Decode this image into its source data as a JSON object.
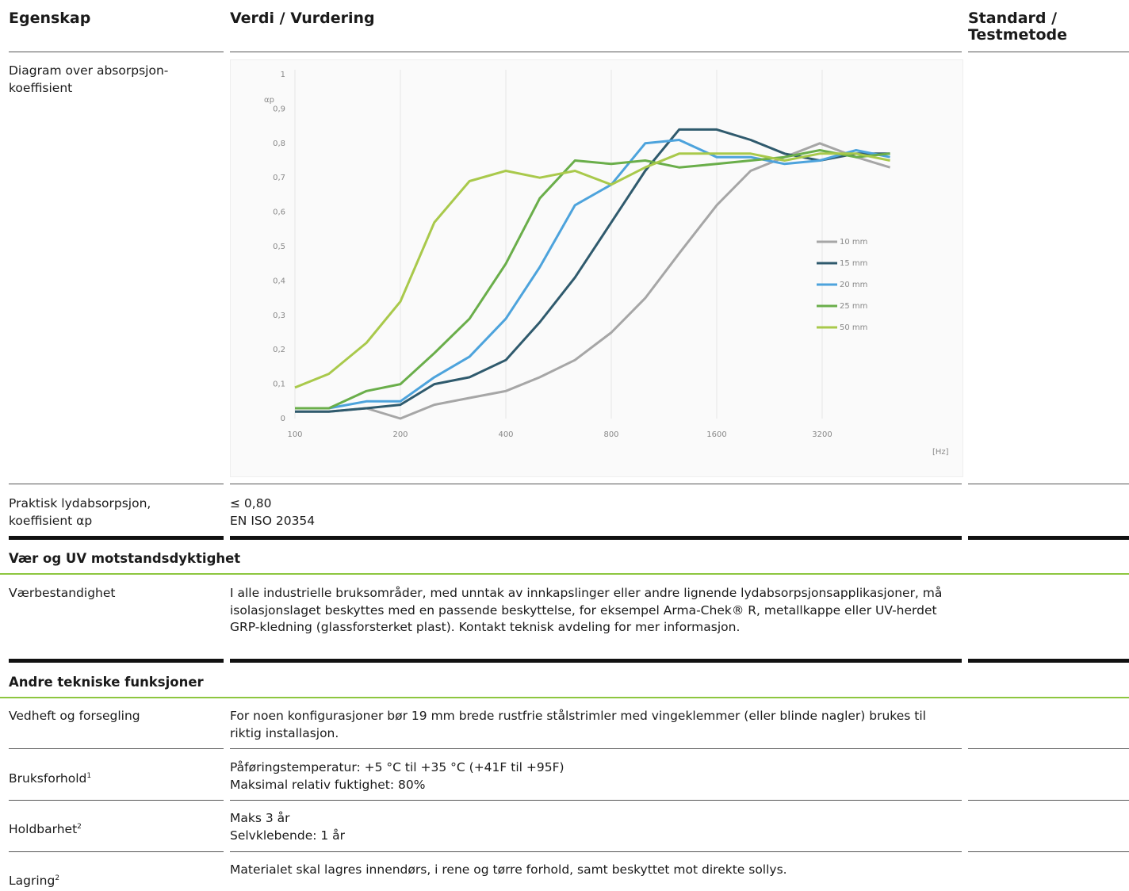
{
  "header": {
    "col1": "Egenskap",
    "col2": "Verdi / Vurdering",
    "col3": "Standard / Testmetode"
  },
  "chart_row": {
    "label": "Diagram over absorpsjon-koeffisient"
  },
  "chart_data": {
    "type": "line",
    "y_label": "αp",
    "x_label": "[Hz]",
    "x": [
      100,
      125,
      160,
      200,
      250,
      315,
      400,
      500,
      630,
      800,
      1000,
      1250,
      1600,
      2000,
      2500,
      3150,
      4000,
      5000
    ],
    "xlim": [
      100,
      6400
    ],
    "xticks": [
      100,
      200,
      400,
      800,
      1600,
      3200
    ],
    "log_x": true,
    "ylim": [
      0,
      1
    ],
    "yticks": [
      0,
      {
        "value": 0.1,
        "label": "0,1"
      },
      {
        "value": 0.2,
        "label": "0,2"
      },
      {
        "value": 0.3,
        "label": "0,3"
      },
      {
        "value": 0.4,
        "label": "0,4"
      },
      {
        "value": 0.5,
        "label": "0,5"
      },
      {
        "value": 0.6,
        "label": "0,6"
      },
      {
        "value": 0.7,
        "label": "0,7"
      },
      {
        "value": 0.8,
        "label": "0,8"
      },
      {
        "value": 0.9,
        "label": "0,9"
      },
      1
    ],
    "grid": "x",
    "legend": "right",
    "series": [
      {
        "name": "10 mm",
        "color": "#a6a6a6",
        "values": [
          0.02,
          0.02,
          0.03,
          0.0,
          0.04,
          0.06,
          0.08,
          0.12,
          0.17,
          0.25,
          0.35,
          0.48,
          0.62,
          0.72,
          0.76,
          0.8,
          0.76,
          0.73
        ]
      },
      {
        "name": "15 mm",
        "color": "#2f5a6d",
        "values": [
          0.02,
          0.02,
          0.03,
          0.04,
          0.1,
          0.12,
          0.17,
          0.28,
          0.41,
          0.57,
          0.72,
          0.84,
          0.84,
          0.81,
          0.77,
          0.75,
          0.77,
          0.77
        ]
      },
      {
        "name": "20 mm",
        "color": "#4da3dc",
        "values": [
          0.03,
          0.03,
          0.05,
          0.05,
          0.12,
          0.18,
          0.29,
          0.44,
          0.62,
          0.68,
          0.8,
          0.81,
          0.76,
          0.76,
          0.74,
          0.75,
          0.78,
          0.76
        ]
      },
      {
        "name": "25 mm",
        "color": "#6aae4a",
        "values": [
          0.03,
          0.03,
          0.08,
          0.1,
          0.19,
          0.29,
          0.45,
          0.64,
          0.75,
          0.74,
          0.75,
          0.73,
          0.74,
          0.75,
          0.76,
          0.78,
          0.76,
          0.77
        ]
      },
      {
        "name": "50 mm",
        "color": "#a9c94b",
        "values": [
          0.09,
          0.13,
          0.22,
          0.34,
          0.57,
          0.69,
          0.72,
          0.7,
          0.72,
          0.68,
          0.73,
          0.77,
          0.77,
          0.77,
          0.75,
          0.77,
          0.77,
          0.75
        ]
      }
    ]
  },
  "rows": [
    {
      "label": "Praktisk lydabsorpsjon, koeffisient αp",
      "lines": [
        "≤ 0,80",
        "EN ISO 20354"
      ]
    },
    {
      "section": "Vær og UV motstandsdyktighet"
    },
    {
      "label": "Værbestandighet",
      "lines": [
        "I alle industrielle bruksområder, med unntak av innkapslinger eller andre lignende lydabsorpsjonsapplikasjoner, må isolasjonslaget beskyttes med en passende beskyttelse, for eksempel Arma-Chek® R, metallkappe eller UV-herdet GRP-kledning (glassforsterket plast). Kontakt teknisk avdeling for mer informasjon."
      ]
    },
    {
      "section": "Andre tekniske funksjoner"
    },
    {
      "label": "Vedheft og forsegling",
      "lines": [
        "For noen konfigurasjoner bør 19 mm brede rustfrie stålstrimler med vingeklemmer (eller blinde nagler) brukes til riktig installasjon."
      ]
    },
    {
      "label": "Bruksforhold",
      "note": "1",
      "lines": [
        "Påføringstemperatur: +5 °C til +35 °C (+41F til +95F)",
        "Maksimal relativ fuktighet: 80%"
      ]
    },
    {
      "label": "Holdbarhet",
      "note": "2",
      "lines": [
        "Maks 3 år",
        "Selvklebende: 1 år"
      ]
    },
    {
      "label": "Lagring",
      "note": "2",
      "lines": [
        "Materialet skal lagres innendørs, i rene og tørre forhold, samt beskyttet mot direkte sollys."
      ]
    }
  ]
}
